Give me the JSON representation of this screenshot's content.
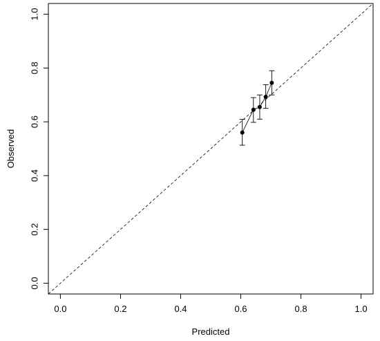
{
  "chart_data": {
    "type": "scatter",
    "xlabel": "Predicted",
    "ylabel": "Observed",
    "xlim": [
      -0.04,
      1.04
    ],
    "ylim": [
      -0.04,
      1.04
    ],
    "x_ticks": [
      0.0,
      0.2,
      0.4,
      0.6,
      0.8,
      1.0
    ],
    "y_ticks": [
      0.0,
      0.2,
      0.4,
      0.6,
      0.8,
      1.0
    ],
    "x_tick_labels": [
      "0.0",
      "0.2",
      "0.4",
      "0.6",
      "0.8",
      "1.0"
    ],
    "y_tick_labels": [
      "0.0",
      "0.2",
      "0.4",
      "0.6",
      "0.8",
      "1.0"
    ],
    "reference_line": {
      "style": "dashed",
      "from": [
        -0.04,
        -0.04
      ],
      "to": [
        1.04,
        1.04
      ]
    },
    "points": [
      {
        "x": 0.605,
        "y": 0.56,
        "lower": 0.513,
        "upper": 0.609
      },
      {
        "x": 0.642,
        "y": 0.645,
        "lower": 0.598,
        "upper": 0.69
      },
      {
        "x": 0.663,
        "y": 0.655,
        "lower": 0.61,
        "upper": 0.7
      },
      {
        "x": 0.683,
        "y": 0.693,
        "lower": 0.65,
        "upper": 0.738
      },
      {
        "x": 0.703,
        "y": 0.745,
        "lower": 0.7,
        "upper": 0.79
      }
    ],
    "connected": true,
    "grid": false,
    "legend": "none"
  }
}
